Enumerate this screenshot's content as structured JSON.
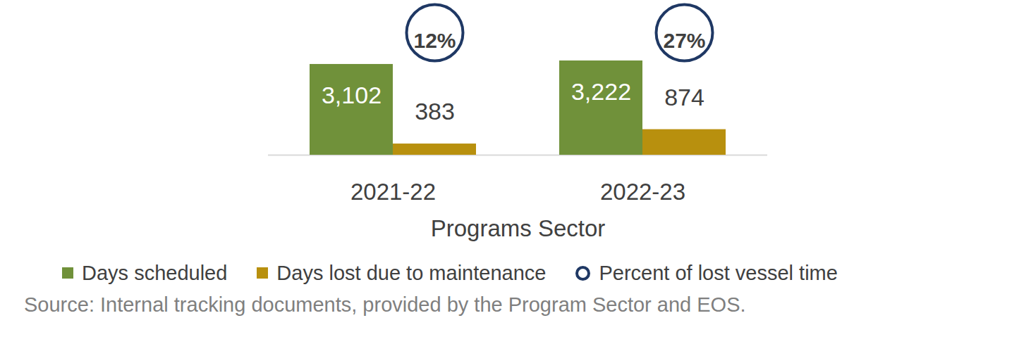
{
  "chart_data": {
    "type": "bar",
    "x_label": "Programs Sector",
    "caption": "Source: Internal tracking documents, provided by the Program Sector and EOS.",
    "categories": [
      "2021-22",
      "2022-23"
    ],
    "series": [
      {
        "name": "Days scheduled",
        "color": "#70913a",
        "values": [
          3102,
          3222
        ],
        "value_labels": [
          "3,102",
          "3,222"
        ]
      },
      {
        "name": "Days lost due to maintenance",
        "color": "#b8900e",
        "values": [
          383,
          874
        ]
      },
      {
        "name": "Percent of lost vessel time",
        "type": "label",
        "marker": "circle",
        "color": "#1f3864",
        "values": [
          12,
          27
        ],
        "value_labels": [
          "12%",
          "27%"
        ]
      }
    ],
    "ylim": [
      0,
      5000
    ],
    "data_labels": true,
    "tick_labels": "x",
    "legend": "bottom"
  }
}
